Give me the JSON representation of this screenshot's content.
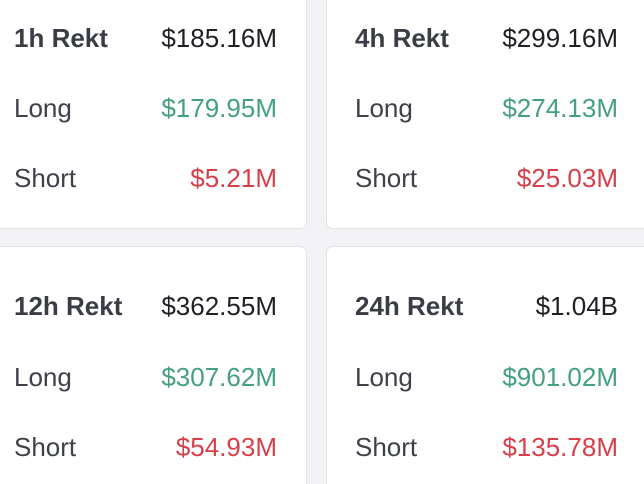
{
  "colors": {
    "long": "#45a07e",
    "short": "#d6404a",
    "title": "#3a3d45",
    "value": "#1f2026"
  },
  "cards": [
    {
      "title": "1h Rekt",
      "total": "$185.16M",
      "long_label": "Long",
      "long": "$179.95M",
      "short_label": "Short",
      "short": "$5.21M"
    },
    {
      "title": "4h Rekt",
      "total": "$299.16M",
      "long_label": "Long",
      "long": "$274.13M",
      "short_label": "Short",
      "short": "$25.03M"
    },
    {
      "title": "12h Rekt",
      "total": "$362.55M",
      "long_label": "Long",
      "long": "$307.62M",
      "short_label": "Short",
      "short": "$54.93M"
    },
    {
      "title": "24h Rekt",
      "total": "$1.04B",
      "long_label": "Long",
      "long": "$901.02M",
      "short_label": "Short",
      "short": "$135.78M"
    }
  ]
}
